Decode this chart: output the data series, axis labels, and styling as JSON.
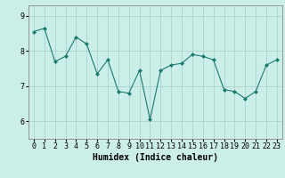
{
  "x": [
    0,
    1,
    2,
    3,
    4,
    5,
    6,
    7,
    8,
    9,
    10,
    11,
    12,
    13,
    14,
    15,
    16,
    17,
    18,
    19,
    20,
    21,
    22,
    23
  ],
  "y": [
    8.55,
    8.65,
    7.7,
    7.85,
    8.4,
    8.2,
    7.35,
    7.75,
    6.85,
    6.8,
    7.45,
    6.05,
    7.45,
    7.6,
    7.65,
    7.9,
    7.85,
    7.75,
    6.9,
    6.85,
    6.65,
    6.85,
    7.6,
    7.75
  ],
  "line_color": "#1a7a6e",
  "marker": "D",
  "marker_size": 2,
  "bg_color": "#cceee8",
  "grid_color": "#aad4cc",
  "axis_color": "#888888",
  "xlabel": "Humidex (Indice chaleur)",
  "xlabel_fontsize": 7,
  "tick_fontsize": 6,
  "ylim_min": 5.5,
  "ylim_max": 9.3,
  "yticks": [
    6,
    7,
    8,
    9
  ],
  "xlim_min": -0.5,
  "xlim_max": 23.5
}
